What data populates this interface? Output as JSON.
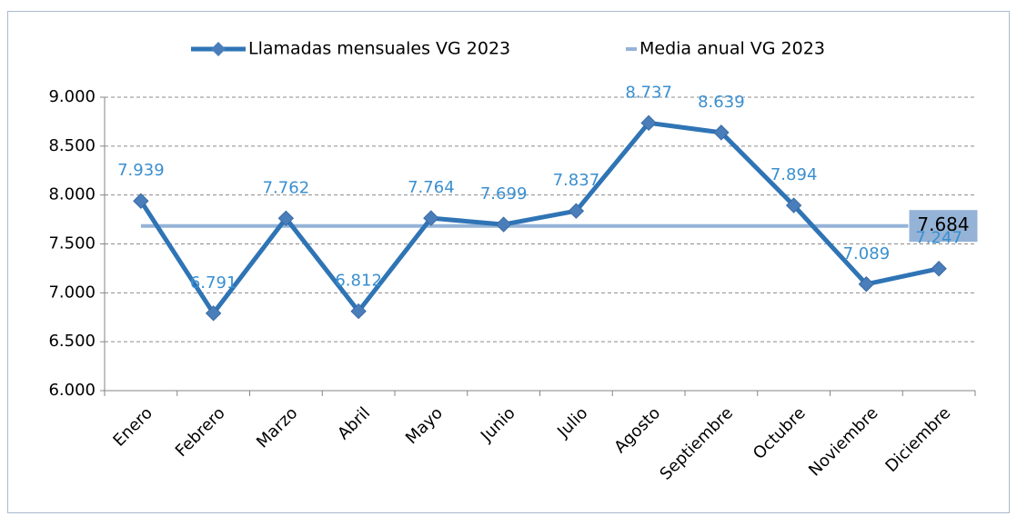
{
  "chart_data": {
    "type": "line",
    "categories": [
      "Enero",
      "Febrero",
      "Marzo",
      "Abril",
      "Mayo",
      "Junio",
      "Julio",
      "Agosto",
      "Septiembre",
      "Octubre",
      "Noviembre",
      "Diciembre"
    ],
    "series": [
      {
        "name": "Llamadas mensuales VG 2023",
        "color": "#2f74b5",
        "values": [
          7939,
          6791,
          7762,
          6812,
          7764,
          7699,
          7837,
          8737,
          8639,
          7894,
          7089,
          7247
        ],
        "value_labels": [
          "7.939",
          "6.791",
          "7.762",
          "6.812",
          "7.764",
          "7.699",
          "7.837",
          "8.737",
          "8.639",
          "7.894",
          "7.089",
          "7.247"
        ]
      },
      {
        "name": "Media anual VG 2023",
        "color": "#95b3d7",
        "values": [
          7684,
          7684,
          7684,
          7684,
          7684,
          7684,
          7684,
          7684,
          7684,
          7684,
          7684,
          7684
        ],
        "value_labels": [
          null,
          null,
          null,
          null,
          null,
          null,
          null,
          null,
          null,
          null,
          null,
          "7.684"
        ]
      }
    ],
    "ylim": [
      6000,
      9000
    ],
    "yticks": [
      {
        "value": 6000,
        "label": "6.000"
      },
      {
        "value": 6500,
        "label": "6.500"
      },
      {
        "value": 7000,
        "label": "7.000"
      },
      {
        "value": 7500,
        "label": "7.500"
      },
      {
        "value": 8000,
        "label": "8.000"
      },
      {
        "value": 8500,
        "label": "8.500"
      },
      {
        "value": 9000,
        "label": "9.000"
      }
    ],
    "grid": true,
    "legend": "top"
  }
}
